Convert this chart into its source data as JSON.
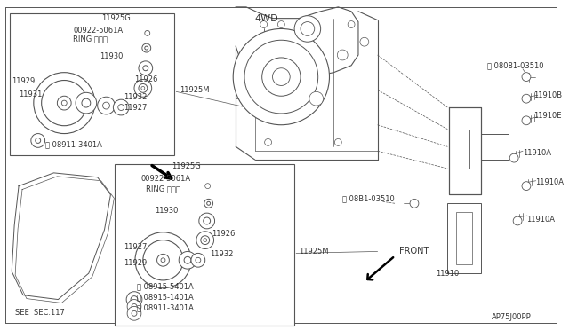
{
  "bg_color": "#ffffff",
  "line_color": "#555555",
  "text_color": "#333333",
  "fig_width": 6.4,
  "fig_height": 3.72,
  "dpi": 100,
  "border_lw": 0.7,
  "thin_lw": 0.5,
  "label_4wd": "4WD",
  "label_front": "FRONT",
  "label_see": "SEE  SEC.117",
  "label_page": "AP75J00PP"
}
